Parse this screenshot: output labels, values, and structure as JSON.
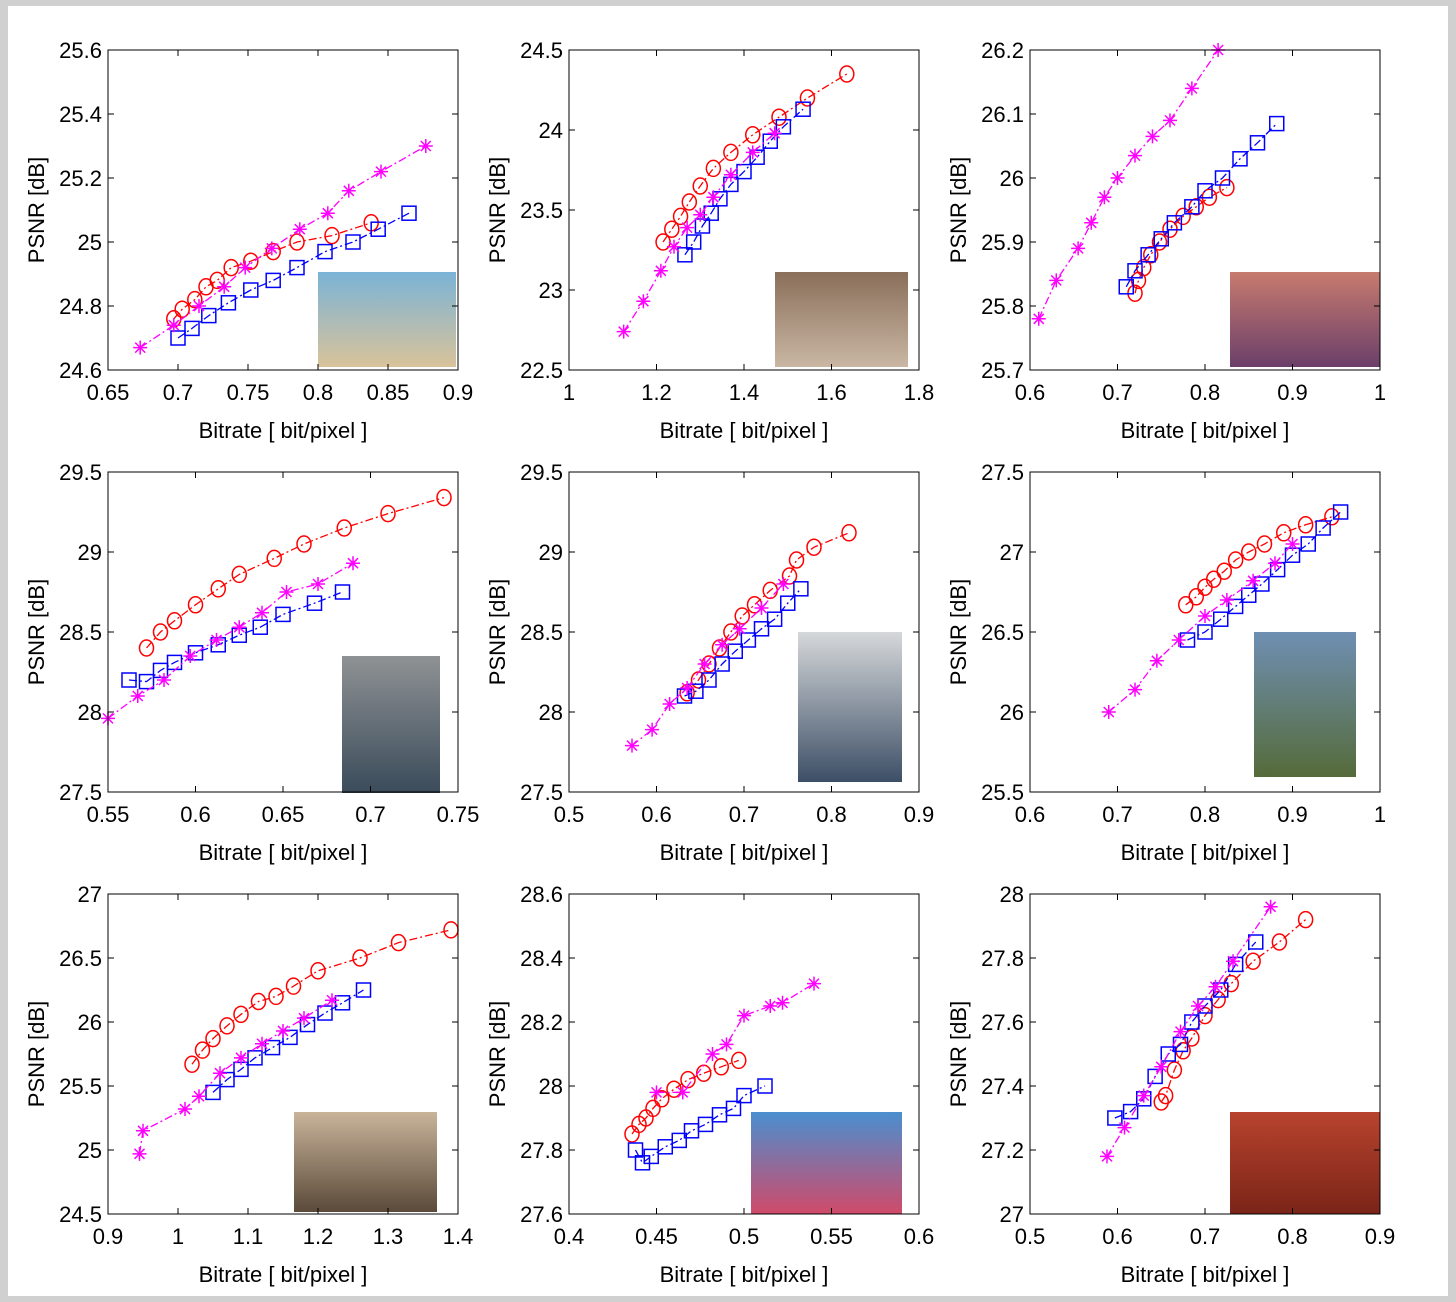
{
  "chart_data": [
    {
      "type": "line",
      "xlabel": "Bitrate [ bit/pixel ]",
      "ylabel": "PSNR [dB]",
      "xlim": [
        0.65,
        0.9
      ],
      "ylim": [
        24.6,
        25.6
      ],
      "xticks": [
        0.65,
        0.7,
        0.75,
        0.8,
        0.85,
        0.9
      ],
      "yticks": [
        24.6,
        24.8,
        25,
        25.2,
        25.4,
        25.6
      ],
      "series": [
        {
          "color": "#ff0000",
          "marker": "circle",
          "x": [
            0.697,
            0.703,
            0.712,
            0.72,
            0.728,
            0.738,
            0.752,
            0.768,
            0.785,
            0.81,
            0.838
          ],
          "values": [
            24.76,
            24.79,
            24.82,
            24.86,
            24.88,
            24.92,
            24.94,
            24.97,
            25.0,
            25.02,
            25.06
          ]
        },
        {
          "color": "#0000ff",
          "marker": "square",
          "x": [
            0.7,
            0.71,
            0.722,
            0.736,
            0.752,
            0.768,
            0.785,
            0.805,
            0.825,
            0.843,
            0.865
          ],
          "values": [
            24.7,
            24.73,
            24.77,
            24.81,
            24.85,
            24.88,
            24.92,
            24.97,
            25.0,
            25.04,
            25.09
          ]
        },
        {
          "color": "#ff00ff",
          "marker": "star",
          "x": [
            0.673,
            0.697,
            0.715,
            0.733,
            0.748,
            0.767,
            0.787,
            0.807,
            0.822,
            0.845,
            0.877
          ],
          "values": [
            24.67,
            24.74,
            24.8,
            24.86,
            24.92,
            24.98,
            25.04,
            25.09,
            25.16,
            25.22,
            25.3
          ]
        }
      ]
    },
    {
      "type": "line",
      "xlabel": "Bitrate [ bit/pixel ]",
      "ylabel": "PSNR [dB]",
      "xlim": [
        1,
        1.8
      ],
      "ylim": [
        22.5,
        24.5
      ],
      "xticks": [
        1,
        1.2,
        1.4,
        1.6,
        1.8
      ],
      "yticks": [
        22.5,
        23,
        23.5,
        24,
        24.5
      ],
      "series": [
        {
          "color": "#ff0000",
          "marker": "circle",
          "x": [
            1.215,
            1.235,
            1.255,
            1.275,
            1.3,
            1.33,
            1.37,
            1.42,
            1.48,
            1.545,
            1.635
          ],
          "values": [
            23.3,
            23.38,
            23.46,
            23.55,
            23.65,
            23.76,
            23.86,
            23.97,
            24.08,
            24.2,
            24.35
          ]
        },
        {
          "color": "#0000ff",
          "marker": "square",
          "x": [
            1.265,
            1.285,
            1.305,
            1.325,
            1.345,
            1.37,
            1.4,
            1.43,
            1.46,
            1.49,
            1.535
          ],
          "values": [
            23.22,
            23.3,
            23.4,
            23.48,
            23.57,
            23.66,
            23.74,
            23.83,
            23.93,
            24.02,
            24.13
          ]
        },
        {
          "color": "#ff00ff",
          "marker": "star",
          "x": [
            1.125,
            1.17,
            1.21,
            1.24,
            1.27,
            1.3,
            1.33,
            1.37,
            1.42,
            1.47
          ],
          "values": [
            22.74,
            22.93,
            23.12,
            23.27,
            23.39,
            23.47,
            23.58,
            23.72,
            23.86,
            23.98
          ]
        }
      ]
    },
    {
      "type": "line",
      "xlabel": "Bitrate [ bit/pixel ]",
      "ylabel": "PSNR [dB]",
      "xlim": [
        0.6,
        1
      ],
      "ylim": [
        25.7,
        26.2
      ],
      "xticks": [
        0.6,
        0.7,
        0.8,
        0.9,
        1
      ],
      "yticks": [
        25.7,
        25.8,
        25.9,
        26,
        26.1,
        26.2
      ],
      "series": [
        {
          "color": "#ff0000",
          "marker": "circle",
          "x": [
            0.72,
            0.724,
            0.73,
            0.738,
            0.748,
            0.76,
            0.775,
            0.79,
            0.805,
            0.825
          ],
          "values": [
            25.82,
            25.84,
            25.86,
            25.88,
            25.9,
            25.92,
            25.94,
            25.955,
            25.97,
            25.985
          ]
        },
        {
          "color": "#0000ff",
          "marker": "square",
          "x": [
            0.71,
            0.72,
            0.735,
            0.75,
            0.765,
            0.785,
            0.8,
            0.82,
            0.84,
            0.86,
            0.882
          ],
          "values": [
            25.83,
            25.855,
            25.88,
            25.905,
            25.93,
            25.955,
            25.98,
            26.0,
            26.03,
            26.055,
            26.085
          ]
        },
        {
          "color": "#ff00ff",
          "marker": "star",
          "x": [
            0.61,
            0.63,
            0.655,
            0.67,
            0.685,
            0.7,
            0.72,
            0.74,
            0.76,
            0.785,
            0.815
          ],
          "values": [
            25.78,
            25.84,
            25.89,
            25.93,
            25.97,
            26.0,
            26.035,
            26.065,
            26.09,
            26.14,
            26.2
          ]
        }
      ]
    },
    {
      "type": "line",
      "xlabel": "Bitrate [ bit/pixel ]",
      "ylabel": "PSNR [dB]",
      "xlim": [
        0.55,
        0.75
      ],
      "ylim": [
        27.5,
        29.5
      ],
      "xticks": [
        0.55,
        0.6,
        0.65,
        0.7,
        0.75
      ],
      "yticks": [
        27.5,
        28,
        28.5,
        29,
        29.5
      ],
      "series": [
        {
          "color": "#ff0000",
          "marker": "circle",
          "x": [
            0.572,
            0.58,
            0.588,
            0.6,
            0.613,
            0.625,
            0.645,
            0.662,
            0.685,
            0.71,
            0.742
          ],
          "values": [
            28.4,
            28.5,
            28.57,
            28.67,
            28.77,
            28.86,
            28.96,
            29.05,
            29.15,
            29.24,
            29.34
          ]
        },
        {
          "color": "#0000ff",
          "marker": "square",
          "x": [
            0.562,
            0.572,
            0.58,
            0.588,
            0.6,
            0.613,
            0.625,
            0.637,
            0.65,
            0.668,
            0.684
          ],
          "values": [
            28.2,
            28.19,
            28.26,
            28.31,
            28.37,
            28.42,
            28.48,
            28.53,
            28.61,
            28.68,
            28.75
          ]
        },
        {
          "color": "#ff00ff",
          "marker": "star",
          "x": [
            0.55,
            0.567,
            0.582,
            0.597,
            0.612,
            0.625,
            0.638,
            0.652,
            0.67,
            0.69
          ],
          "values": [
            27.96,
            28.1,
            28.2,
            28.35,
            28.45,
            28.53,
            28.62,
            28.75,
            28.8,
            28.93
          ]
        }
      ]
    },
    {
      "type": "line",
      "xlabel": "Bitrate [ bit/pixel ]",
      "ylabel": "PSNR [dB]",
      "xlim": [
        0.5,
        0.9
      ],
      "ylim": [
        27.5,
        29.5
      ],
      "xticks": [
        0.5,
        0.6,
        0.7,
        0.8,
        0.9
      ],
      "yticks": [
        27.5,
        28,
        28.5,
        29,
        29.5
      ],
      "series": [
        {
          "color": "#ff0000",
          "marker": "circle",
          "x": [
            0.635,
            0.648,
            0.66,
            0.672,
            0.685,
            0.698,
            0.712,
            0.73,
            0.752,
            0.76,
            0.78,
            0.82
          ],
          "values": [
            28.12,
            28.2,
            28.3,
            28.4,
            28.5,
            28.6,
            28.67,
            28.76,
            28.85,
            28.95,
            29.03,
            29.12
          ]
        },
        {
          "color": "#0000ff",
          "marker": "square",
          "x": [
            0.632,
            0.645,
            0.66,
            0.675,
            0.69,
            0.705,
            0.72,
            0.735,
            0.75,
            0.765
          ],
          "values": [
            28.1,
            28.13,
            28.2,
            28.3,
            28.38,
            28.45,
            28.52,
            28.58,
            28.68,
            28.77
          ]
        },
        {
          "color": "#ff00ff",
          "marker": "star",
          "x": [
            0.572,
            0.595,
            0.615,
            0.635,
            0.655,
            0.675,
            0.695,
            0.72,
            0.745
          ],
          "values": [
            27.79,
            27.89,
            28.05,
            28.15,
            28.3,
            28.42,
            28.52,
            28.65,
            28.8
          ]
        }
      ]
    },
    {
      "type": "line",
      "xlabel": "Bitrate [ bit/pixel ]",
      "ylabel": "PSNR [dB]",
      "xlim": [
        0.6,
        1
      ],
      "ylim": [
        25.5,
        27.5
      ],
      "xticks": [
        0.6,
        0.7,
        0.8,
        0.9,
        1
      ],
      "yticks": [
        25.5,
        26,
        26.5,
        27,
        27.5
      ],
      "series": [
        {
          "color": "#ff0000",
          "marker": "circle",
          "x": [
            0.778,
            0.79,
            0.8,
            0.81,
            0.822,
            0.835,
            0.85,
            0.868,
            0.89,
            0.915,
            0.945
          ],
          "values": [
            26.67,
            26.72,
            26.78,
            26.83,
            26.88,
            26.95,
            27.0,
            27.05,
            27.12,
            27.17,
            27.22
          ]
        },
        {
          "color": "#0000ff",
          "marker": "square",
          "x": [
            0.78,
            0.8,
            0.818,
            0.835,
            0.85,
            0.865,
            0.883,
            0.9,
            0.918,
            0.935,
            0.955
          ],
          "values": [
            26.45,
            26.5,
            26.58,
            26.66,
            26.73,
            26.8,
            26.89,
            26.98,
            27.05,
            27.15,
            27.25
          ]
        },
        {
          "color": "#ff00ff",
          "marker": "star",
          "x": [
            0.69,
            0.72,
            0.745,
            0.77,
            0.8,
            0.825,
            0.855,
            0.88,
            0.9
          ],
          "values": [
            26.0,
            26.14,
            26.32,
            26.45,
            26.6,
            26.7,
            26.82,
            26.93,
            27.05
          ]
        }
      ]
    },
    {
      "type": "line",
      "xlabel": "Bitrate [ bit/pixel ]",
      "ylabel": "PSNR [dB]",
      "xlim": [
        0.9,
        1.4
      ],
      "ylim": [
        24.5,
        27
      ],
      "xticks": [
        0.9,
        1,
        1.1,
        1.2,
        1.3,
        1.4
      ],
      "yticks": [
        24.5,
        25,
        25.5,
        26,
        26.5,
        27
      ],
      "series": [
        {
          "color": "#ff0000",
          "marker": "circle",
          "x": [
            1.02,
            1.035,
            1.05,
            1.07,
            1.09,
            1.115,
            1.14,
            1.165,
            1.2,
            1.26,
            1.315,
            1.39
          ],
          "values": [
            25.67,
            25.78,
            25.87,
            25.97,
            26.06,
            26.16,
            26.2,
            26.28,
            26.4,
            26.5,
            26.62,
            26.72
          ]
        },
        {
          "color": "#0000ff",
          "marker": "square",
          "x": [
            1.05,
            1.07,
            1.09,
            1.11,
            1.135,
            1.16,
            1.185,
            1.21,
            1.235,
            1.265
          ],
          "values": [
            25.45,
            25.55,
            25.63,
            25.72,
            25.8,
            25.88,
            25.98,
            26.07,
            26.15,
            26.25
          ]
        },
        {
          "color": "#ff00ff",
          "marker": "star",
          "x": [
            0.945,
            0.95,
            1.01,
            1.03,
            1.06,
            1.09,
            1.12,
            1.15,
            1.18,
            1.22
          ],
          "values": [
            24.97,
            25.15,
            25.32,
            25.42,
            25.6,
            25.72,
            25.83,
            25.93,
            26.03,
            26.17
          ]
        }
      ]
    },
    {
      "type": "line",
      "xlabel": "Bitrate [ bit/pixel ]",
      "ylabel": "PSNR [dB]",
      "xlim": [
        0.4,
        0.6
      ],
      "ylim": [
        27.6,
        28.6
      ],
      "xticks": [
        0.4,
        0.45,
        0.5,
        0.55,
        0.6
      ],
      "yticks": [
        27.6,
        27.8,
        28,
        28.2,
        28.4,
        28.6
      ],
      "series": [
        {
          "color": "#ff0000",
          "marker": "circle",
          "x": [
            0.436,
            0.44,
            0.444,
            0.448,
            0.453,
            0.46,
            0.468,
            0.477,
            0.487,
            0.497
          ],
          "values": [
            27.85,
            27.88,
            27.9,
            27.93,
            27.96,
            27.99,
            28.02,
            28.04,
            28.06,
            28.08
          ]
        },
        {
          "color": "#0000ff",
          "marker": "square",
          "x": [
            0.438,
            0.442,
            0.447,
            0.455,
            0.463,
            0.47,
            0.478,
            0.486,
            0.494,
            0.5,
            0.512
          ],
          "values": [
            27.8,
            27.76,
            27.78,
            27.81,
            27.83,
            27.86,
            27.88,
            27.91,
            27.93,
            27.97,
            28.0
          ]
        },
        {
          "color": "#ff00ff",
          "marker": "star",
          "x": [
            0.45,
            0.465,
            0.482,
            0.49,
            0.5,
            0.515,
            0.522,
            0.54
          ],
          "values": [
            27.98,
            27.98,
            28.1,
            28.13,
            28.22,
            28.25,
            28.26,
            28.32
          ]
        }
      ]
    },
    {
      "type": "line",
      "xlabel": "Bitrate [ bit/pixel ]",
      "ylabel": "PSNR [dB]",
      "xlim": [
        0.5,
        0.9
      ],
      "ylim": [
        27,
        28
      ],
      "xticks": [
        0.5,
        0.6,
        0.7,
        0.8,
        0.9
      ],
      "yticks": [
        27,
        27.2,
        27.4,
        27.6,
        27.8,
        28
      ],
      "series": [
        {
          "color": "#ff0000",
          "marker": "circle",
          "x": [
            0.65,
            0.655,
            0.665,
            0.675,
            0.685,
            0.7,
            0.715,
            0.73,
            0.755,
            0.785,
            0.815
          ],
          "values": [
            27.35,
            27.37,
            27.45,
            27.51,
            27.55,
            27.62,
            27.67,
            27.72,
            27.79,
            27.85,
            27.92
          ]
        },
        {
          "color": "#0000ff",
          "marker": "square",
          "x": [
            0.597,
            0.615,
            0.63,
            0.643,
            0.658,
            0.672,
            0.685,
            0.7,
            0.718,
            0.735,
            0.758
          ],
          "values": [
            27.3,
            27.32,
            27.36,
            27.43,
            27.5,
            27.53,
            27.6,
            27.65,
            27.7,
            27.78,
            27.85
          ]
        },
        {
          "color": "#ff00ff",
          "marker": "star",
          "x": [
            0.588,
            0.608,
            0.63,
            0.65,
            0.672,
            0.692,
            0.712,
            0.732,
            0.775
          ],
          "values": [
            27.18,
            27.27,
            27.37,
            27.46,
            27.57,
            27.65,
            27.71,
            27.79,
            27.96
          ]
        }
      ]
    }
  ]
}
